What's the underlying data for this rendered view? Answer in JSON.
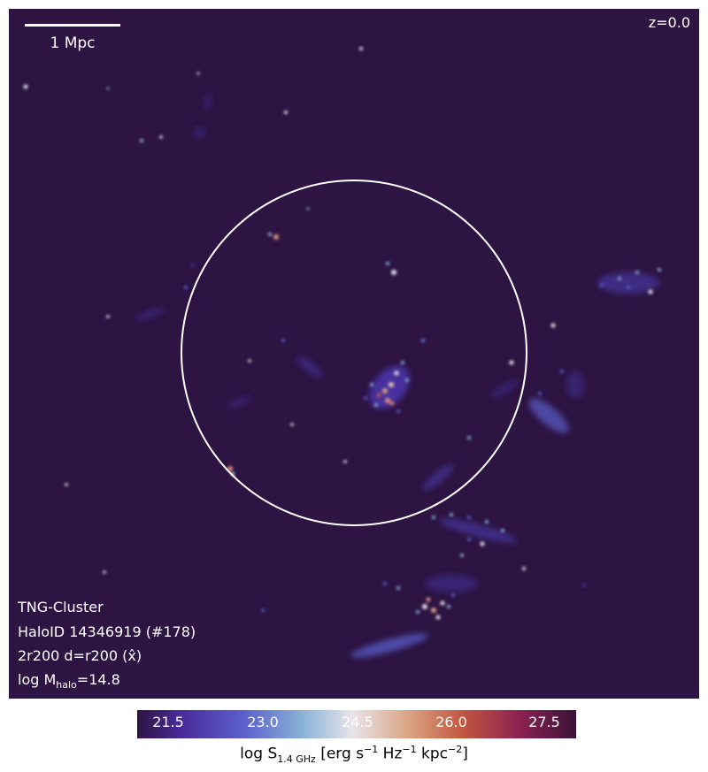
{
  "scalebar": {
    "label": "1 Mpc"
  },
  "redshift": "z=0.0",
  "info": {
    "simulation": "TNG-Cluster",
    "halo": "HaloID 14346919 (#178)",
    "projection": "2r200 d=r200 (x̂)",
    "mass_prefix": "log M",
    "mass_sub": "halo",
    "mass_value": "=14.8"
  },
  "colorbar": {
    "ticks": [
      "21.5",
      "23.0",
      "24.5",
      "26.0",
      "27.5"
    ],
    "label_prefix": "log S",
    "label_sub": "1.4 GHz",
    "label_rest_1": " [erg s",
    "label_sup_1": "−1",
    "label_rest_2": " Hz",
    "label_sup_2": "−1",
    "label_rest_3": " kpc",
    "label_sup_3": "−2",
    "label_rest_4": "]"
  },
  "colors": {
    "background": "#2d1442",
    "circle": "#ffffff"
  }
}
